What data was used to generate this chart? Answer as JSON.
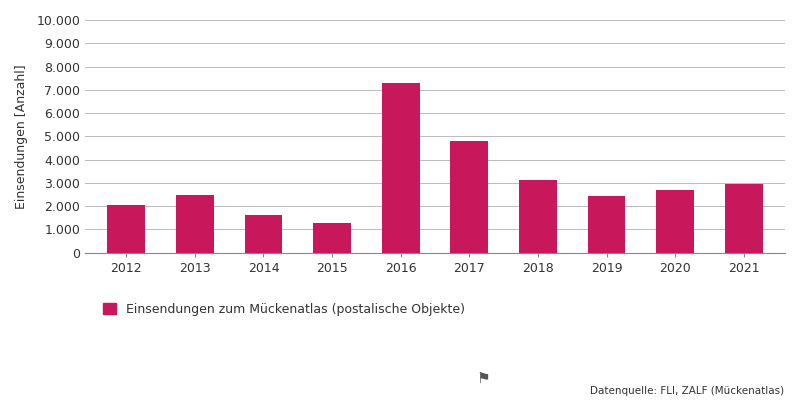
{
  "years": [
    2012,
    2013,
    2014,
    2015,
    2016,
    2017,
    2018,
    2019,
    2020,
    2021
  ],
  "values": [
    2030,
    2460,
    1640,
    1290,
    7300,
    4800,
    3130,
    2450,
    2680,
    2970
  ],
  "bar_color": "#C8175A",
  "background_color": "#ffffff",
  "plot_bg_color": "#ffffff",
  "ylabel": "Einsendungen [Anzahl]",
  "ylim": [
    0,
    10000
  ],
  "yticks": [
    0,
    1000,
    2000,
    3000,
    4000,
    5000,
    6000,
    7000,
    8000,
    9000,
    10000
  ],
  "ytick_labels": [
    "0",
    "1.000",
    "2.000",
    "3.000",
    "4.000",
    "5.000",
    "6.000",
    "7.000",
    "8.000",
    "9.000",
    "10.000"
  ],
  "legend_label": "Einsendungen zum Mückenatlas (postalische Objekte)",
  "source_text": "Datenquelle: FLI, ZALF (Mückenatlas)",
  "grid_color": "#bbbbbb",
  "spine_color": "#888888",
  "tick_color": "#555555",
  "text_color": "#333333"
}
